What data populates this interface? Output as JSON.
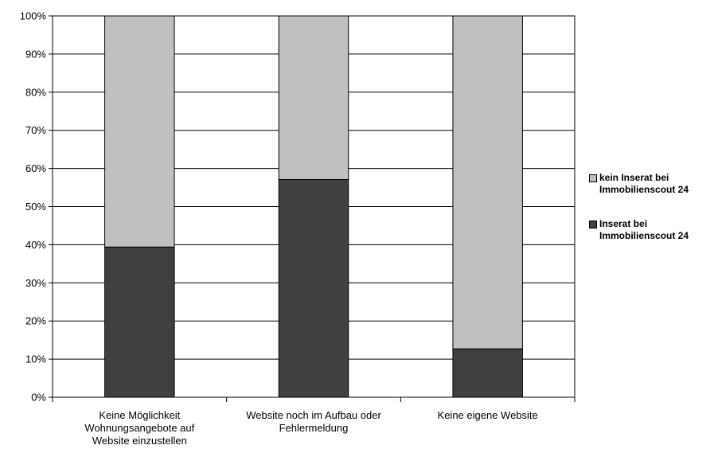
{
  "chart_data": {
    "type": "bar",
    "stacked": true,
    "categories": [
      [
        "Keine Möglichkeit",
        "Wohnungsangebote auf",
        "Website einzustellen"
      ],
      [
        "Website noch im Aufbau oder",
        "Fehlermeldung"
      ],
      [
        "Keine eigene Website"
      ]
    ],
    "series": [
      {
        "name": "Inserat bei Immobilienscout 24",
        "color": "#404040",
        "values": [
          39.4,
          57.1,
          12.7
        ]
      },
      {
        "name": "kein Inserat bei Immobilienscout 24",
        "color": "#c0c0c0",
        "values": [
          60.6,
          42.9,
          87.3
        ]
      }
    ],
    "legend_order": [
      1,
      0
    ],
    "yticks": [
      "0%",
      "10%",
      "20%",
      "30%",
      "40%",
      "50%",
      "60%",
      "70%",
      "80%",
      "90%",
      "100%"
    ],
    "ylim": [
      0,
      100
    ],
    "grid": true,
    "legend_position": "right"
  }
}
